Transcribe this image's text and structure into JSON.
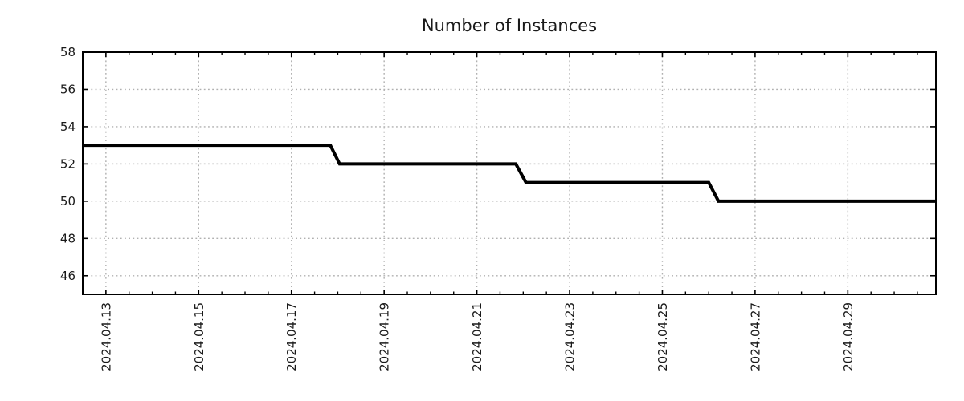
{
  "chart_data": {
    "type": "line",
    "style": "step-line",
    "title": "Number of Instances",
    "xlabel": "",
    "ylabel": "",
    "grid": true,
    "legend": null,
    "colors": {
      "line": "#000000",
      "grid": "#b0b0b0",
      "axis": "#000000",
      "text": "#1a1a1a",
      "background": "#ffffff"
    },
    "ylim": [
      45,
      58
    ],
    "y_ticks": [
      46,
      48,
      50,
      52,
      54,
      56,
      58
    ],
    "x_origin_date": "2024-04-13",
    "xlim_days": [
      -0.5,
      17.9
    ],
    "x_minor_step_days": 0.5,
    "x_major_ticks": [
      {
        "label": "2024.04.13",
        "day": 0
      },
      {
        "label": "2024.04.15",
        "day": 2
      },
      {
        "label": "2024.04.17",
        "day": 4
      },
      {
        "label": "2024.04.19",
        "day": 6
      },
      {
        "label": "2024.04.21",
        "day": 8
      },
      {
        "label": "2024.04.23",
        "day": 10
      },
      {
        "label": "2024.04.25",
        "day": 12
      },
      {
        "label": "2024.04.27",
        "day": 14
      },
      {
        "label": "2024.04.29",
        "day": 16
      }
    ],
    "series": [
      {
        "name": "instances",
        "points": [
          {
            "time": "2024-04-12 12:00",
            "day": -0.5,
            "value": 53
          },
          {
            "time": "2024-04-17 20:00",
            "day": 4.84,
            "value": 53
          },
          {
            "time": "2024-04-18 01:00",
            "day": 5.04,
            "value": 52
          },
          {
            "time": "2024-04-21 20:00",
            "day": 8.84,
            "value": 52
          },
          {
            "time": "2024-04-22 01:30",
            "day": 9.06,
            "value": 51
          },
          {
            "time": "2024-04-26 00:00",
            "day": 13.0,
            "value": 51
          },
          {
            "time": "2024-04-26 05:00",
            "day": 13.21,
            "value": 50
          },
          {
            "time": "2024-04-30 21:30",
            "day": 17.9,
            "value": 50
          }
        ]
      }
    ]
  }
}
